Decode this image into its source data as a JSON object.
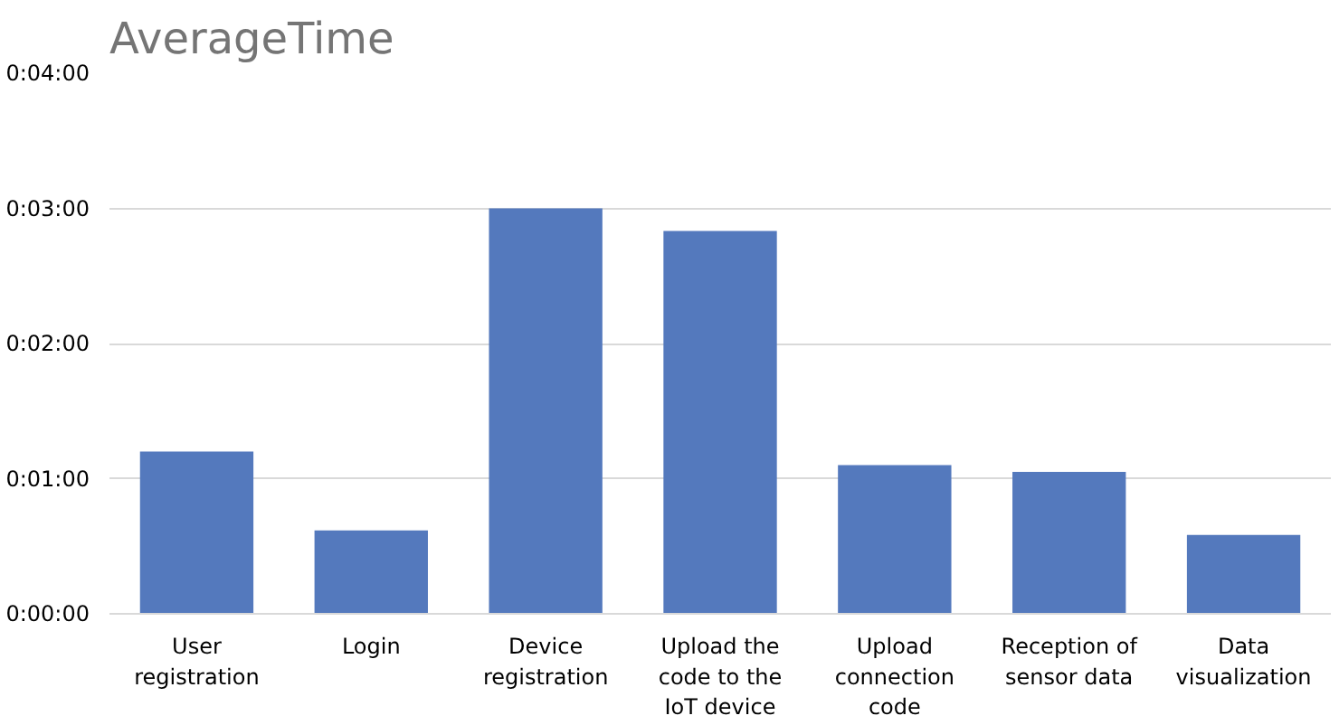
{
  "chart_data": {
    "type": "bar",
    "title": "AverageTime",
    "categories": [
      "User registration",
      "Login",
      "Device registration",
      "Upload the code to the IoT device",
      "Upload connection code",
      "Reception of sensor data",
      "Data visualization"
    ],
    "values": [
      72,
      37,
      180,
      170,
      66,
      63,
      35
    ],
    "color": "#5479bd",
    "ylim": [
      0,
      240
    ],
    "yticks": [
      {
        "value": 0,
        "label": "0:00:00"
      },
      {
        "value": 60,
        "label": "0:01:00"
      },
      {
        "value": 120,
        "label": "0:02:00"
      },
      {
        "value": 180,
        "label": "0:03:00"
      },
      {
        "value": 240,
        "label": "0:04:00"
      }
    ],
    "grid": "y"
  }
}
